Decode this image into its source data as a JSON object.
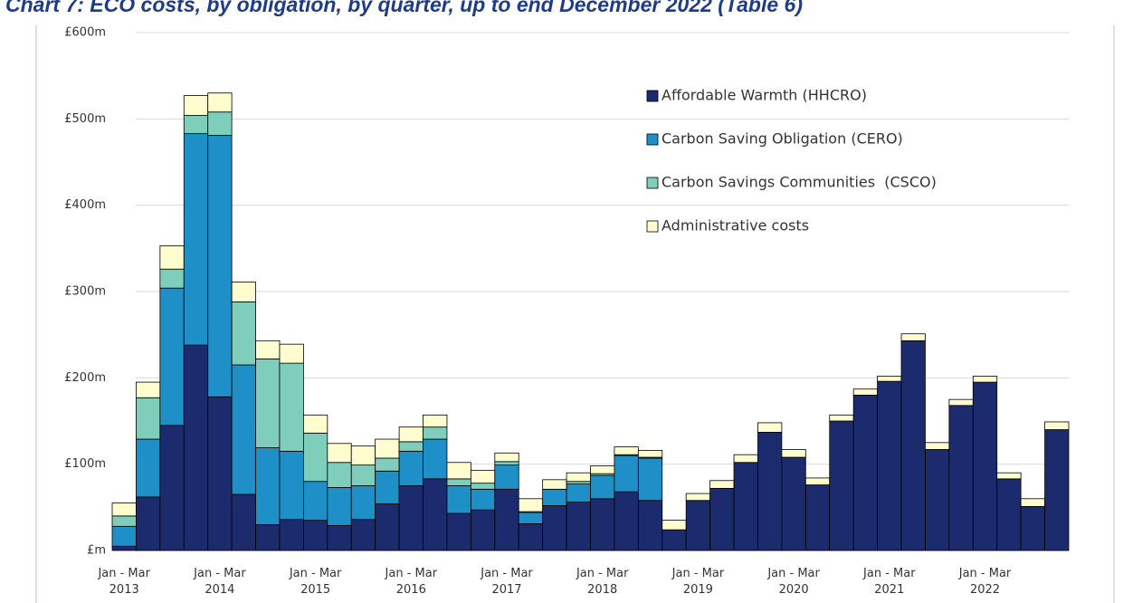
{
  "chart_data": {
    "type": "stacked_bar",
    "title": "Chart 7: ECO costs, by obligation, by quarter, up to end December 2022 (Table 6)",
    "categories": [
      "Jan - Mar\n2013",
      null,
      null,
      null,
      "Jan - Mar\n2014",
      null,
      null,
      null,
      "Jan - Mar\n2015",
      null,
      null,
      null,
      "Jan - Mar\n2016",
      null,
      null,
      null,
      "Jan - Mar\n2017",
      null,
      null,
      null,
      "Jan - Mar\n2018",
      null,
      null,
      null,
      "Jan - Mar\n2019",
      null,
      null,
      null,
      "Jan - Mar\n2020",
      null,
      null,
      null,
      "Jan - Mar\n2021",
      null,
      null,
      null,
      "Jan - Mar\n2022",
      null,
      null,
      null
    ],
    "series": [
      {
        "name": "Affordable Warmth (HHCRO)",
        "color": "#1c2a6e",
        "values": [
          5,
          62,
          145,
          238,
          178,
          65,
          30,
          36,
          35,
          29,
          36,
          54,
          75,
          83,
          43,
          47,
          71,
          31,
          52,
          56,
          60,
          68,
          58,
          24,
          58,
          72,
          102,
          137,
          108,
          76,
          150,
          180,
          196,
          243,
          117,
          168,
          195,
          83,
          51,
          140
        ]
      },
      {
        "name": "Carbon Saving Obligation (CERO)",
        "color": "#1f8fc8",
        "values": [
          23,
          67,
          159,
          245,
          303,
          150,
          89,
          79,
          45,
          44,
          39,
          38,
          40,
          46,
          32,
          24,
          28,
          13,
          19,
          21,
          27,
          42,
          49,
          0,
          0,
          0,
          0,
          0,
          0,
          0,
          0,
          0,
          0,
          0,
          0,
          0,
          0,
          0,
          0,
          0
        ]
      },
      {
        "name": "Carbon Savings Communities  (CSCO)",
        "color": "#7fcdbb",
        "values": [
          12,
          48,
          22,
          21,
          27,
          73,
          103,
          102,
          56,
          29,
          24,
          15,
          11,
          14,
          8,
          7,
          4,
          1,
          0,
          3,
          2,
          1,
          1,
          0,
          0,
          0,
          0,
          0,
          0,
          0,
          0,
          0,
          0,
          0,
          0,
          0,
          0,
          0,
          0,
          0
        ]
      },
      {
        "name": "Administrative costs",
        "color": "#fffdd0",
        "values": [
          15,
          18,
          27,
          23,
          22,
          23,
          21,
          22,
          21,
          22,
          22,
          22,
          17,
          14,
          19,
          15,
          10,
          15,
          11,
          10,
          9,
          9,
          8,
          11,
          8,
          9,
          9,
          11,
          9,
          8,
          7,
          7,
          6,
          8,
          8,
          7,
          7,
          7,
          9,
          9
        ]
      }
    ],
    "ylim": [
      0,
      600
    ],
    "yticks": [
      {
        "value": 0,
        "label": "£m"
      },
      {
        "value": 100,
        "label": "£100m"
      },
      {
        "value": 200,
        "label": "£200m"
      },
      {
        "value": 300,
        "label": "£300m"
      },
      {
        "value": 400,
        "label": "£400m"
      },
      {
        "value": 500,
        "label": "£500m"
      },
      {
        "value": 600,
        "label": "£600m"
      }
    ],
    "grid": true,
    "legend": "upper right"
  }
}
